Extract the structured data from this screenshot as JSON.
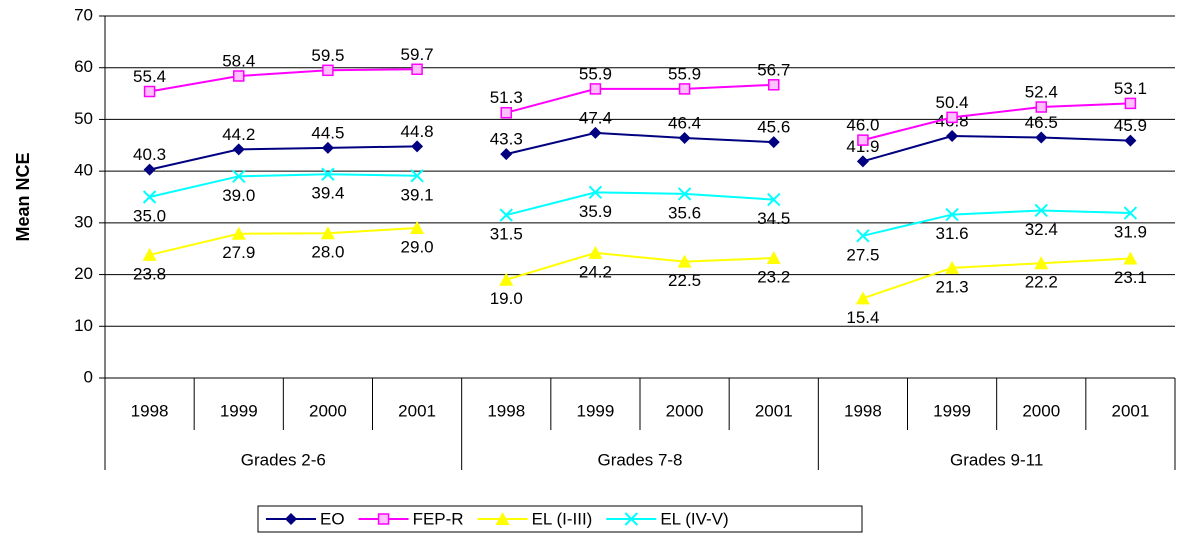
{
  "chart_data": {
    "type": "line",
    "y_label": "Mean NCE",
    "groups": [
      {
        "name": "Grades 2-6",
        "categories": [
          "1998",
          "1999",
          "2000",
          "2001"
        ]
      },
      {
        "name": "Grades 7-8",
        "categories": [
          "1998",
          "1999",
          "2000",
          "2001"
        ]
      },
      {
        "name": "Grades 9-11",
        "categories": [
          "1998",
          "1999",
          "2000",
          "2001"
        ]
      }
    ],
    "series": [
      {
        "name": "EO",
        "color": "#000080",
        "marker": "diamond",
        "values": [
          [
            40.3,
            44.2,
            44.5,
            44.8
          ],
          [
            43.3,
            47.4,
            46.4,
            45.6
          ],
          [
            41.9,
            46.8,
            46.5,
            45.9
          ]
        ],
        "value_labels": [
          [
            "40.3",
            "44.2",
            "44.5",
            "44.8"
          ],
          [
            "43.3",
            "47.4",
            "46.4",
            "45.6"
          ],
          [
            "41.9",
            "46.8",
            "46.5",
            "45.9"
          ]
        ]
      },
      {
        "name": "FEP-R",
        "color": "#ff00ff",
        "marker": "square",
        "values": [
          [
            55.4,
            58.4,
            59.5,
            59.7
          ],
          [
            51.3,
            55.9,
            55.9,
            56.7
          ],
          [
            46.0,
            50.4,
            52.4,
            53.1
          ]
        ],
        "value_labels": [
          [
            "55.4",
            "58.4",
            "59.5",
            "59.7"
          ],
          [
            "51.3",
            "55.9",
            "55.9",
            "56.7"
          ],
          [
            "46.0",
            "50.4",
            "52.4",
            "53.1"
          ]
        ]
      },
      {
        "name": "EL (I-III)",
        "color": "#ffff00",
        "marker": "triangle",
        "values": [
          [
            23.8,
            27.9,
            28.0,
            29.0
          ],
          [
            19.0,
            24.2,
            22.5,
            23.2
          ],
          [
            15.4,
            21.3,
            22.2,
            23.1
          ]
        ],
        "value_labels": [
          [
            "23.8",
            "27.9",
            "28.0",
            "29.0"
          ],
          [
            "19.0",
            "24.2",
            "22.5",
            "23.2"
          ],
          [
            "15.4",
            "21.3",
            "22.2",
            "23.1"
          ]
        ]
      },
      {
        "name": "EL (IV-V)",
        "color": "#00ffff",
        "marker": "x",
        "values": [
          [
            35.0,
            39.0,
            39.4,
            39.1
          ],
          [
            31.5,
            35.9,
            35.6,
            34.5
          ],
          [
            27.5,
            31.6,
            32.4,
            31.9
          ]
        ],
        "value_labels": [
          [
            "35.0",
            "39.0",
            "39.4",
            "39.1"
          ],
          [
            "31.5",
            "35.9",
            "35.6",
            "34.5"
          ],
          [
            "27.5",
            "31.6",
            "32.4",
            "31.9"
          ]
        ]
      }
    ],
    "ylim": [
      0,
      70
    ],
    "yticks": [
      0,
      10,
      20,
      30,
      40,
      50,
      60,
      70
    ],
    "grid": true,
    "legend": "bottom"
  }
}
